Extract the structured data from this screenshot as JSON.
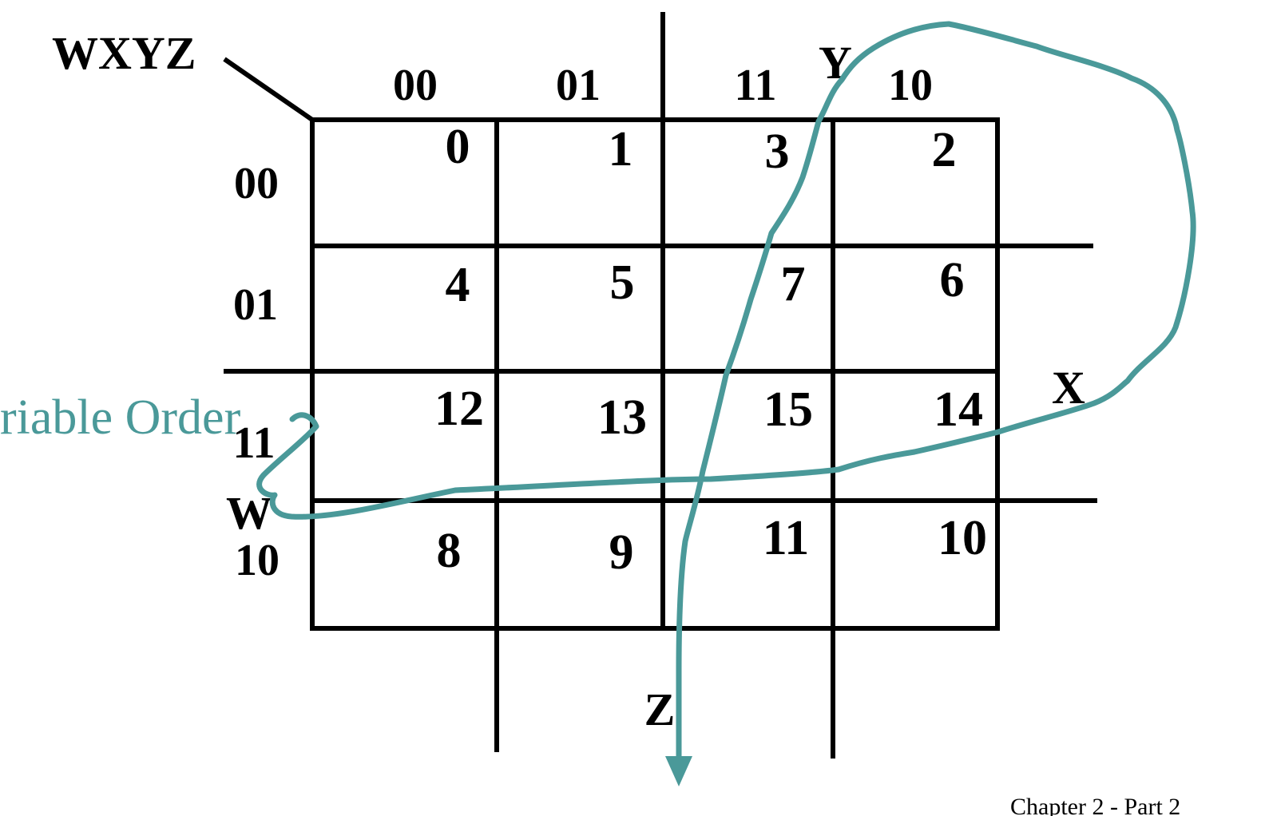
{
  "corner_label": "WXYZ",
  "column_codes": [
    "00",
    "01",
    "11",
    "10"
  ],
  "row_codes": [
    "00",
    "01",
    "11",
    "10"
  ],
  "cells": [
    [
      "0",
      "1",
      "3",
      "2"
    ],
    [
      "4",
      "5",
      "7",
      "6"
    ],
    [
      "12",
      "13",
      "15",
      "14"
    ],
    [
      "8",
      "9",
      "11",
      "10"
    ]
  ],
  "variables": {
    "w": "W",
    "x": "X",
    "y": "Y",
    "z": "Z"
  },
  "annotation": {
    "text": "riable Order",
    "color": "#4a9999"
  },
  "footer": "Chapter 2 - Part 2"
}
